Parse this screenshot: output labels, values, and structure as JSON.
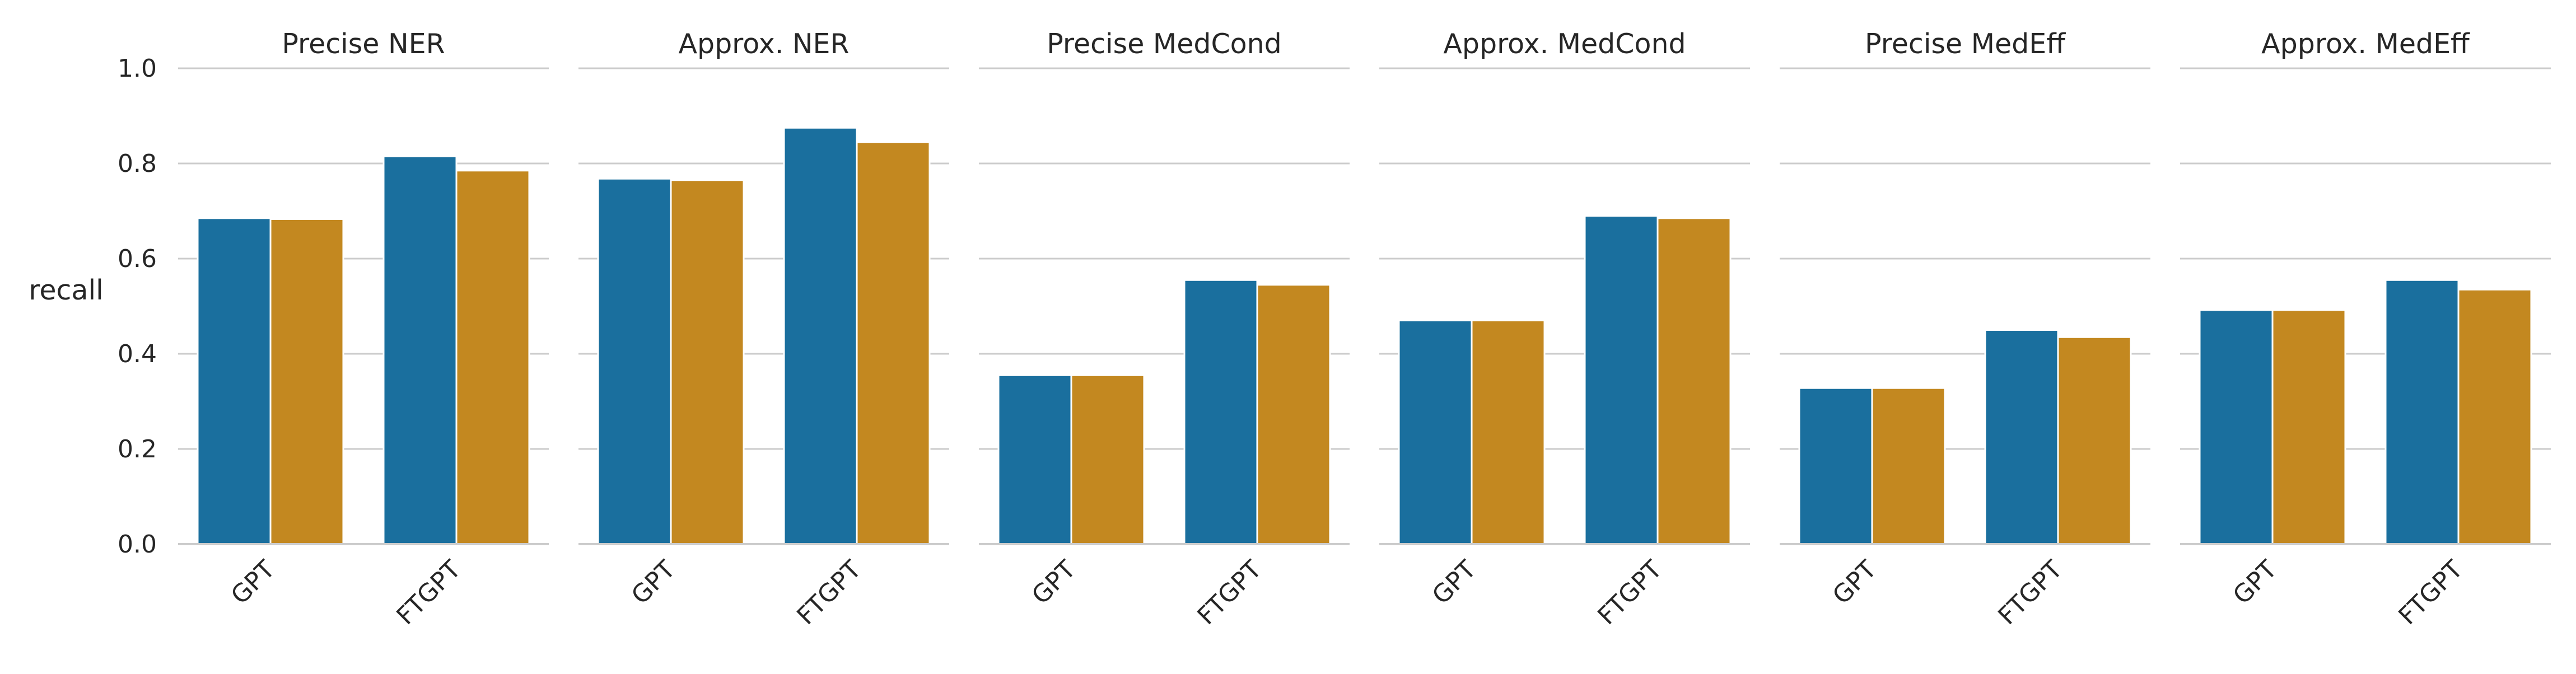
{
  "chart_data": {
    "type": "bar",
    "ylabel": "recall",
    "ylim": [
      0,
      1.0
    ],
    "yticks": [
      "0.0",
      "0.2",
      "0.4",
      "0.6",
      "0.8",
      "1.0"
    ],
    "grid": "horizontal",
    "colors": [
      "#1a6f9e",
      "#c38820"
    ],
    "categories": [
      "GPT",
      "FTGPT"
    ],
    "panels": [
      {
        "title": "Precise NER",
        "series": [
          {
            "values": [
              0.685,
              0.815
            ]
          },
          {
            "values": [
              0.683,
              0.785
            ]
          }
        ]
      },
      {
        "title": "Approx. NER",
        "series": [
          {
            "values": [
              0.768,
              0.875
            ]
          },
          {
            "values": [
              0.765,
              0.845
            ]
          }
        ]
      },
      {
        "title": "Precise MedCond",
        "series": [
          {
            "values": [
              0.355,
              0.555
            ]
          },
          {
            "values": [
              0.355,
              0.545
            ]
          }
        ]
      },
      {
        "title": "Approx. MedCond",
        "series": [
          {
            "values": [
              0.47,
              0.69
            ]
          },
          {
            "values": [
              0.47,
              0.685
            ]
          }
        ]
      },
      {
        "title": "Precise MedEff",
        "series": [
          {
            "values": [
              0.328,
              0.45
            ]
          },
          {
            "values": [
              0.328,
              0.435
            ]
          }
        ]
      },
      {
        "title": "Approx. MedEff",
        "series": [
          {
            "values": [
              0.492,
              0.555
            ]
          },
          {
            "values": [
              0.492,
              0.535
            ]
          }
        ]
      }
    ]
  }
}
